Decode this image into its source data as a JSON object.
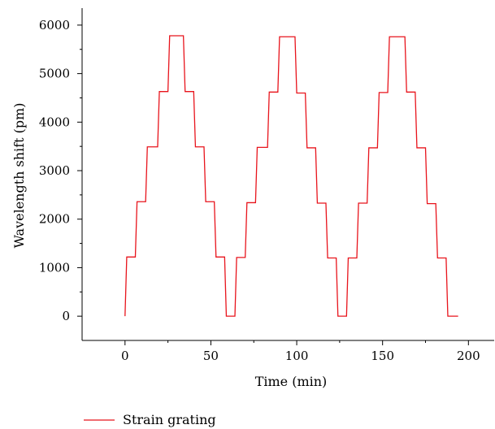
{
  "chart_data": {
    "type": "line",
    "title": "",
    "xlabel": "Time (min)",
    "ylabel": "Wavelength shift (pm)",
    "xlim": [
      -25,
      215
    ],
    "ylim": [
      -500,
      6350
    ],
    "xticks": [
      0,
      50,
      100,
      150,
      200
    ],
    "yticks": [
      0,
      1000,
      2000,
      3000,
      4000,
      5000,
      6000
    ],
    "grid": false,
    "legend_position": "bottom-left",
    "series": [
      {
        "name": "Strain grating",
        "color": "#e8141c",
        "x": [
          0,
          1,
          6,
          7,
          12,
          13,
          19,
          20,
          25,
          26,
          34,
          35,
          40,
          41,
          46,
          47,
          52,
          53,
          58,
          59,
          64,
          65,
          70,
          71,
          76,
          77,
          83,
          84,
          89,
          90,
          99,
          100,
          105,
          106,
          111,
          112,
          117,
          118,
          123,
          124,
          129,
          130,
          135,
          136,
          141,
          142,
          147,
          148,
          153,
          154,
          163,
          164,
          169,
          170,
          175,
          176,
          181,
          182,
          187,
          188,
          193,
          194
        ],
        "y": [
          0,
          1220,
          1220,
          2360,
          2360,
          3490,
          3490,
          4630,
          4630,
          5780,
          5780,
          4630,
          4630,
          3490,
          3490,
          2360,
          2360,
          1220,
          1220,
          0,
          0,
          1210,
          1210,
          2340,
          2340,
          3480,
          3480,
          4620,
          4620,
          5760,
          5760,
          4600,
          4600,
          3470,
          3470,
          2330,
          2330,
          1200,
          1200,
          0,
          0,
          1200,
          1200,
          2330,
          2330,
          3470,
          3470,
          4610,
          4610,
          5760,
          5760,
          4620,
          4620,
          3470,
          3470,
          2320,
          2320,
          1200,
          1200,
          0,
          0,
          0
        ]
      }
    ]
  },
  "legend": {
    "label": "Strain grating"
  }
}
